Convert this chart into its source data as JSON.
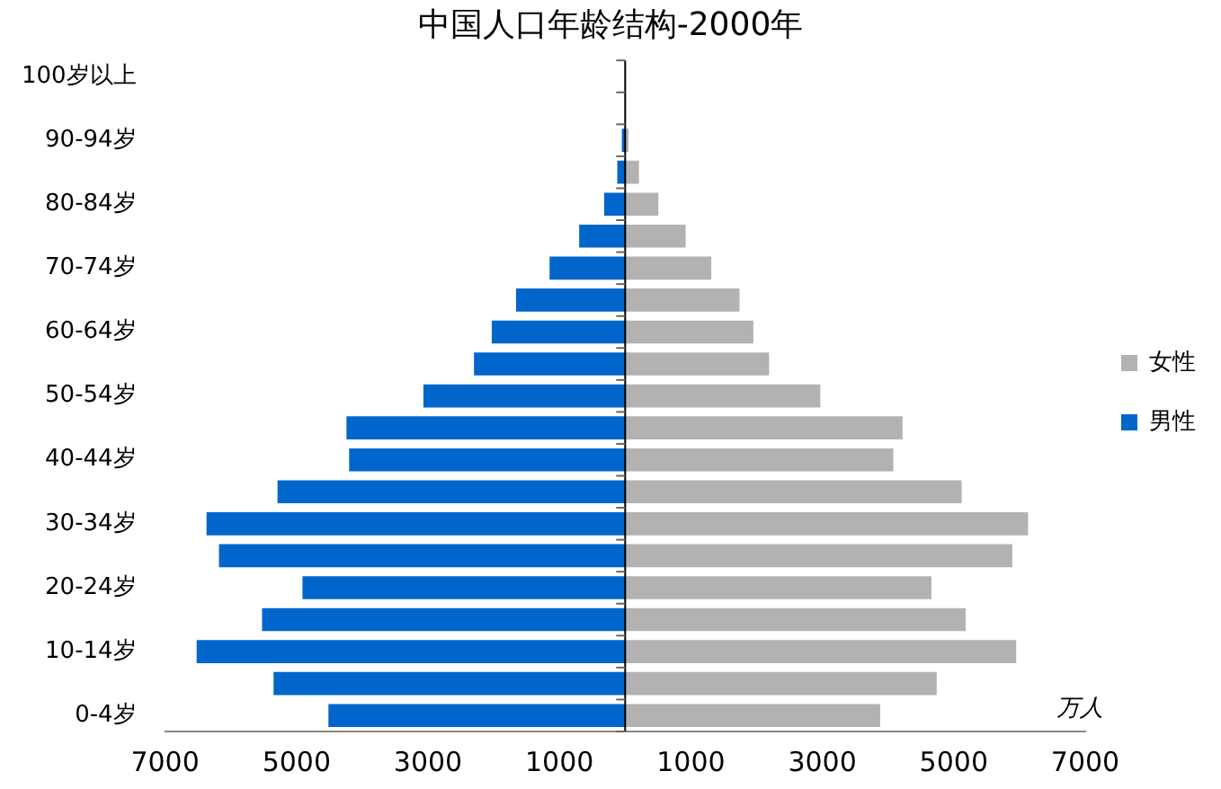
{
  "chart_data": {
    "type": "bar",
    "orientation": "horizontal",
    "stacked": true,
    "title": "中国人口年龄结构-2000年",
    "xlabel": "万人",
    "categories": [
      "100岁以上",
      null,
      "90-94岁",
      null,
      "80-84岁",
      null,
      "70-74岁",
      null,
      "60-64岁",
      null,
      "50-54岁",
      null,
      "40-44岁",
      null,
      "30-34岁",
      null,
      "20-24岁",
      null,
      "10-14岁",
      null,
      "0-4岁"
    ],
    "series": [
      {
        "name": "男性",
        "color": "#0066cc",
        "values": [
          null,
          null,
          -50,
          -120,
          -320,
          -700,
          -1150,
          -1660,
          -2030,
          -2300,
          -3070,
          -4240,
          -4200,
          -5290,
          -6370,
          -6180,
          -4910,
          -5525,
          -6520,
          -5350,
          -4515
        ]
      },
      {
        "name": "女性",
        "color": "#b2b2b2",
        "values": [
          null,
          null,
          50,
          210,
          505,
          920,
          1310,
          1740,
          1950,
          2190,
          2970,
          4220,
          4080,
          5120,
          6130,
          5890,
          4660,
          5180,
          5950,
          4740,
          3880
        ]
      }
    ],
    "xlim": [
      -7000,
      7000
    ],
    "xticks": [
      {
        "value": -7000,
        "label": "7000"
      },
      {
        "value": -5000,
        "label": "5000"
      },
      {
        "value": -3000,
        "label": "3000"
      },
      {
        "value": -1000,
        "label": "1000"
      },
      1000,
      3000,
      5000,
      7000
    ],
    "grid": false,
    "legend": "right"
  }
}
